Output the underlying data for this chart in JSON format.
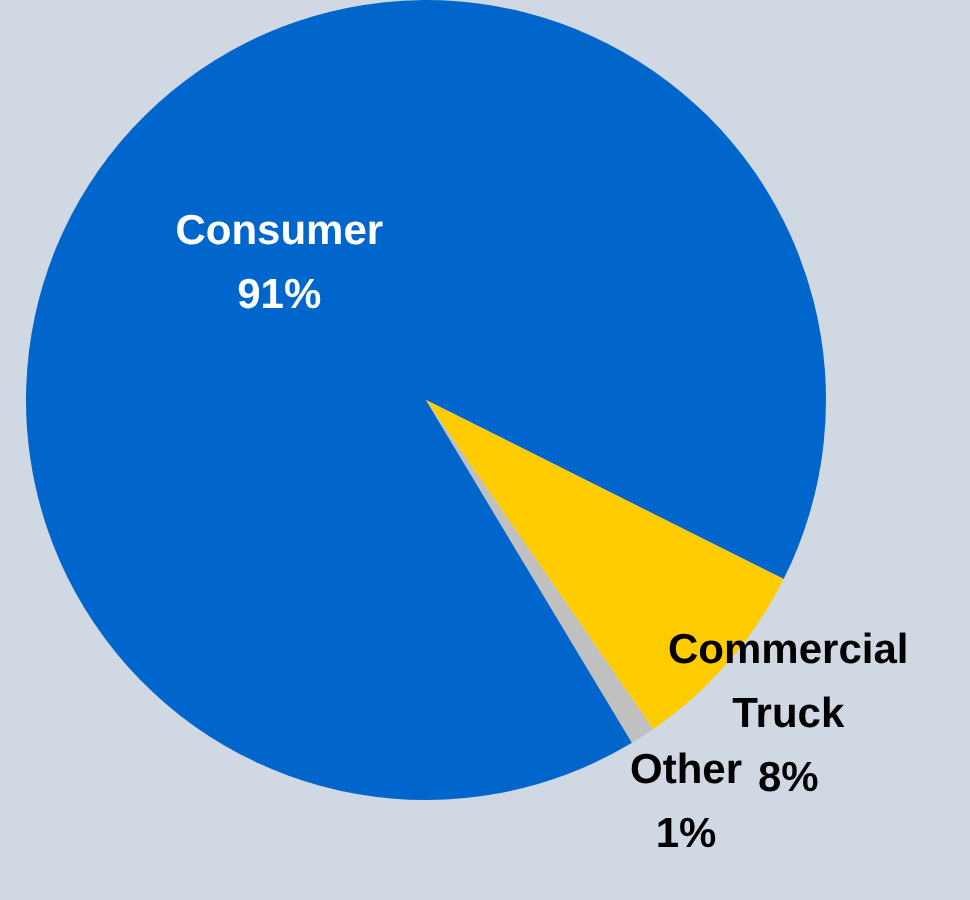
{
  "chart_data": {
    "type": "pie",
    "categories": [
      "Consumer",
      "Commercial Truck",
      "Other"
    ],
    "values": [
      91,
      8,
      1
    ],
    "value_labels": [
      "91%",
      "8%",
      "1%"
    ],
    "colors": [
      "#0066cc",
      "#ffcc00",
      "#c0c0c0"
    ],
    "legend": false
  }
}
